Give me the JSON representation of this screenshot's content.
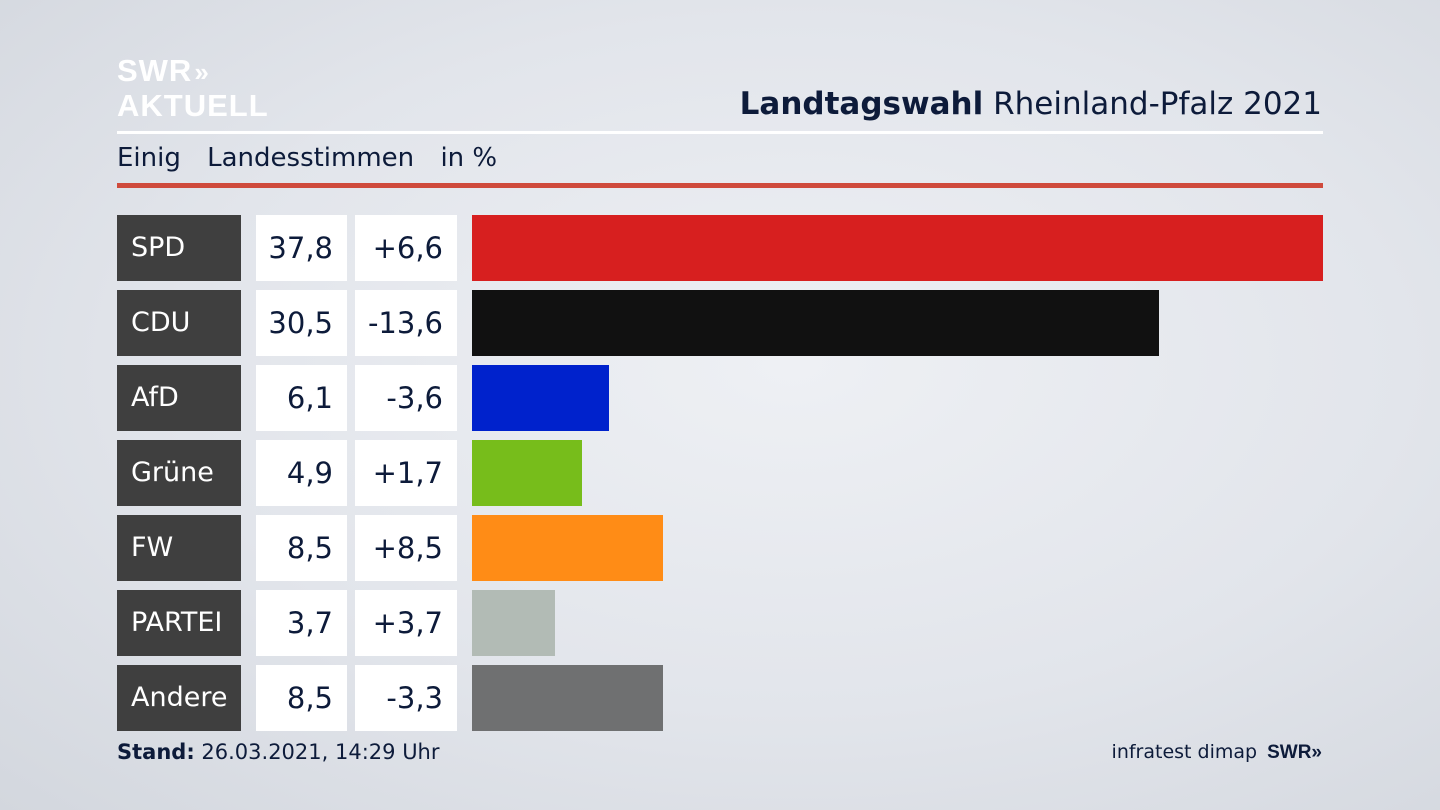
{
  "brand": {
    "logo_line1": "SWR",
    "logo_chevrons": "»",
    "logo_line2": "AKTUELL"
  },
  "header": {
    "title_bold": "Landtagswahl",
    "title_rest": "Rheinland-Pfalz 2021"
  },
  "subheader": {
    "area": "Einig",
    "metric": "Landesstimmen",
    "unit": "in %"
  },
  "chart_data": {
    "type": "bar",
    "orientation": "horizontal",
    "categories": [
      "SPD",
      "CDU",
      "AfD",
      "Grüne",
      "FW",
      "PARTEI",
      "Andere"
    ],
    "values": [
      37.8,
      30.5,
      6.1,
      4.9,
      8.5,
      3.7,
      8.5
    ],
    "value_labels": [
      "37,8",
      "30,5",
      "6,1",
      "4,9",
      "8,5",
      "3,7",
      "8,5"
    ],
    "diff_labels": [
      "+6,6",
      "-13,6",
      "-3,6",
      "+1,7",
      "+8,5",
      "+3,7",
      "-3,3"
    ],
    "diffs": [
      6.6,
      -13.6,
      -3.6,
      1.7,
      8.5,
      3.7,
      -3.3
    ],
    "colors": [
      "#d71f1f",
      "#111111",
      "#0022cc",
      "#77bd1b",
      "#ff8c16",
      "#b2bbb5",
      "#6f7071"
    ],
    "xlim": [
      0,
      37.8
    ],
    "grid": false,
    "legend": "none"
  },
  "footer": {
    "stand_label": "Stand:",
    "stand_value": "26.03.2021, 14:29 Uhr",
    "source": "infratest dimap",
    "swr": "SWR",
    "swr_chevrons": "»"
  }
}
